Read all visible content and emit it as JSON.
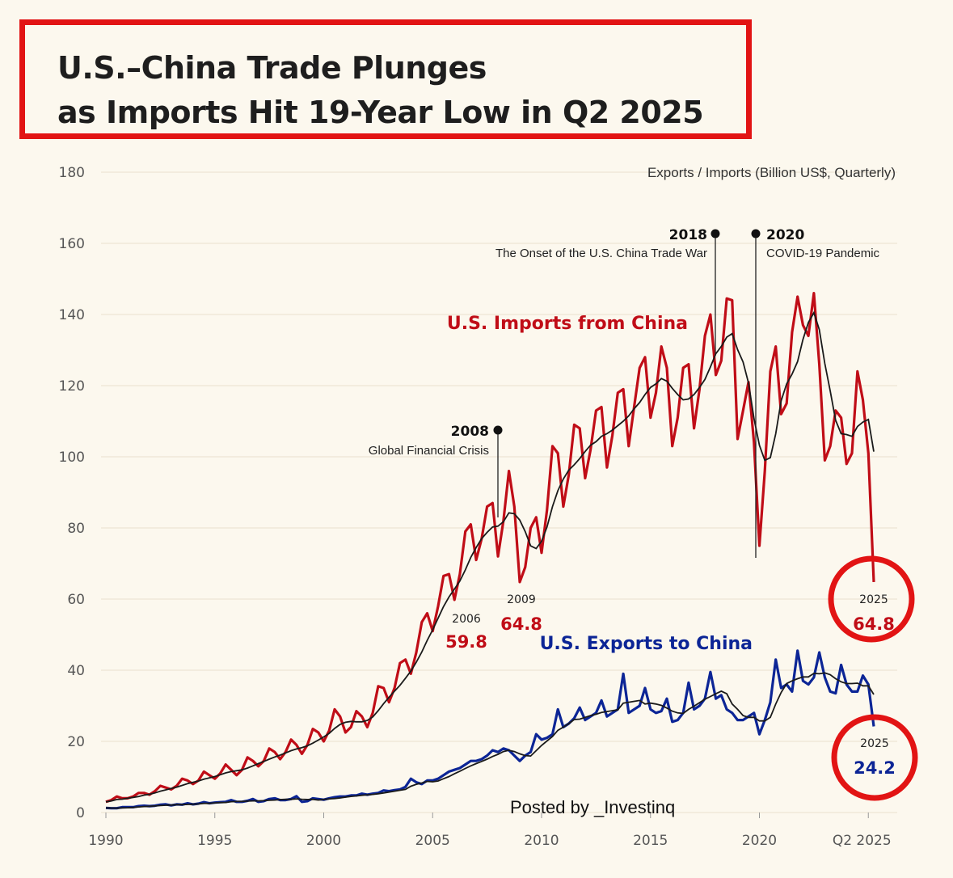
{
  "title": {
    "line1": "U.S.–China Trade Plunges",
    "line2": "as Imports Hit 19-Year Low in Q2 2025"
  },
  "watermark": "Posted by _Investinq",
  "chart_data": {
    "type": "line",
    "unit_label": "Exports / Imports (Billion US$, Quarterly)",
    "x_start": "1990 Q1",
    "x_end": "2025 Q2",
    "frequency": "quarterly",
    "x_ticks": [
      "1990",
      "1995",
      "2000",
      "2005",
      "2010",
      "2015",
      "2020",
      "Q2 2025"
    ],
    "y_ticks": [
      0,
      20,
      40,
      60,
      80,
      100,
      120,
      140,
      160,
      180
    ],
    "ylim": [
      0,
      180
    ],
    "grid": true,
    "colors": {
      "imports": "#c00d17",
      "exports": "#0c2596",
      "trend": "#1a1a1a",
      "highlight": "#e21414"
    },
    "series": [
      {
        "name": "U.S. Imports from China",
        "values": [
          3,
          3.5,
          4.5,
          4,
          4,
          4.5,
          5.5,
          5.5,
          5,
          6,
          7.5,
          7,
          6.5,
          7.5,
          9.5,
          9,
          8,
          9,
          11.5,
          10.5,
          9.5,
          11,
          13.5,
          12,
          10.5,
          12,
          15.5,
          14.5,
          13,
          14.5,
          18,
          17,
          15,
          17,
          20.5,
          19,
          16.5,
          19,
          23.5,
          22.5,
          20,
          23,
          29,
          27,
          22.5,
          24,
          28.5,
          27,
          24,
          28,
          35.5,
          35,
          31,
          35,
          42,
          43,
          39,
          45,
          53.5,
          56,
          51,
          58,
          66.5,
          67,
          59.8,
          67,
          79,
          81,
          71,
          77,
          86,
          87,
          72,
          82,
          96,
          86,
          64.8,
          69,
          80,
          83,
          73,
          85,
          103,
          101,
          86,
          95,
          109,
          108,
          94,
          102,
          113,
          114,
          97,
          106,
          118,
          119,
          103,
          114,
          125,
          128,
          111,
          118,
          131,
          125,
          103,
          111,
          125,
          126,
          108,
          119,
          134,
          140,
          123,
          127,
          144.5,
          144,
          105,
          113,
          121,
          104,
          75,
          96,
          124,
          131,
          112,
          115,
          135,
          145,
          137,
          134,
          146,
          126,
          99,
          103,
          113,
          111,
          98,
          101,
          124,
          116,
          101,
          64.8
        ]
      },
      {
        "name": "U.S. Exports to China",
        "values": [
          1.3,
          1.2,
          1.2,
          1.5,
          1.5,
          1.5,
          1.8,
          1.9,
          1.8,
          1.9,
          2.2,
          2.3,
          2,
          2.3,
          2.2,
          2.6,
          2.3,
          2.5,
          2.9,
          2.6,
          2.8,
          2.9,
          3,
          3.5,
          3,
          3,
          3.3,
          3.8,
          3,
          3.2,
          3.8,
          4,
          3.5,
          3.5,
          3.8,
          4.6,
          3,
          3.2,
          4,
          3.8,
          3.6,
          4,
          4.3,
          4.5,
          4.5,
          4.8,
          4.8,
          5.3,
          5,
          5.3,
          5.5,
          6.2,
          6,
          6.3,
          6.5,
          7.2,
          9.5,
          8.5,
          8,
          9,
          9,
          9.5,
          10.5,
          11.5,
          12,
          12.5,
          13.5,
          14.5,
          14.5,
          15,
          16,
          17.5,
          17,
          18,
          17.5,
          16,
          14.5,
          16,
          17,
          22,
          20.5,
          21,
          22,
          29,
          24,
          25,
          26.5,
          29.5,
          26,
          27,
          28,
          31.5,
          27,
          28,
          29,
          39,
          28,
          29,
          30,
          35,
          29,
          28,
          28.5,
          32,
          25.5,
          26,
          28,
          36.5,
          29,
          30,
          32,
          39.5,
          32,
          33,
          29,
          28,
          26,
          26,
          27,
          28,
          22,
          26,
          31,
          43,
          35,
          36,
          34,
          45.5,
          37,
          36,
          38,
          45,
          38,
          34,
          33.5,
          41.5,
          36,
          34,
          34,
          38.5,
          36,
          24.2
        ]
      }
    ],
    "series_labels": {
      "imports": "U.S. Imports from China",
      "exports": "U.S. Exports to China"
    },
    "annotations": {
      "events": [
        {
          "year": "2008",
          "label": "Global Financial Crisis"
        },
        {
          "year": "2018",
          "label": "The Onset of the U.S. China Trade War"
        },
        {
          "year": "2020",
          "label": "COVID-19 Pandemic"
        }
      ],
      "points": [
        {
          "year": "2006",
          "value": "59.8",
          "series": "imports"
        },
        {
          "year": "2009",
          "value": "64.8",
          "series": "imports"
        },
        {
          "year": "2025",
          "value": "64.8",
          "series": "imports"
        },
        {
          "year": "2025",
          "value": "24.2",
          "series": "exports"
        }
      ]
    }
  }
}
